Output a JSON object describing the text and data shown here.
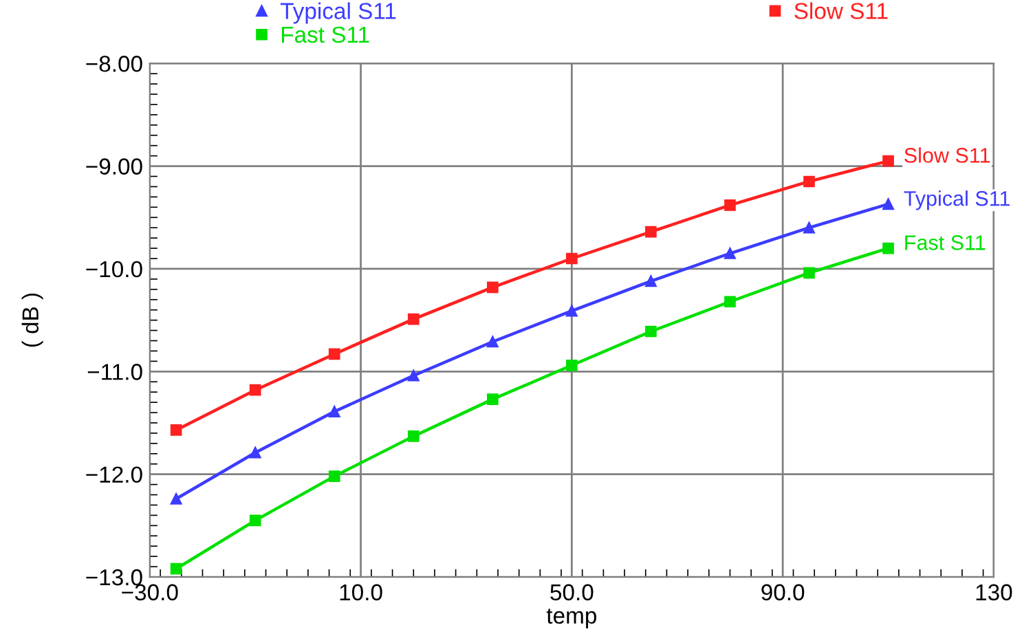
{
  "chart_data": {
    "type": "line",
    "xlabel": "temp",
    "ylabel": "( dB )",
    "x": [
      -25,
      -10,
      5,
      20,
      35,
      50,
      65,
      80,
      95,
      110
    ],
    "series": [
      {
        "name": "Typical S11",
        "color": "#3c3cff",
        "marker": "triangle",
        "values": [
          -12.24,
          -11.79,
          -11.39,
          -11.04,
          -10.71,
          -10.41,
          -10.12,
          -9.85,
          -9.6,
          -9.37
        ]
      },
      {
        "name": "Fast S11",
        "color": "#00e000",
        "marker": "square",
        "values": [
          -12.92,
          -12.45,
          -12.02,
          -11.63,
          -11.27,
          -10.94,
          -10.61,
          -10.32,
          -10.04,
          -9.8
        ]
      },
      {
        "name": "Slow S11",
        "color": "#ff2020",
        "marker": "square",
        "values": [
          -11.57,
          -11.18,
          -10.83,
          -10.49,
          -10.18,
          -9.9,
          -9.64,
          -9.38,
          -9.15,
          -8.95
        ]
      }
    ],
    "xlim": [
      -30,
      130
    ],
    "xticks": [
      {
        "value": -30,
        "label": "−30.0"
      },
      {
        "value": 10,
        "label": "10.0"
      },
      {
        "value": 50,
        "label": "50.0"
      },
      {
        "value": 90,
        "label": "90.0"
      },
      130
    ],
    "ylim": [
      -13,
      -8
    ],
    "yticks": [
      {
        "value": -13,
        "label": "−13.0"
      },
      {
        "value": -12,
        "label": "−12.0"
      },
      {
        "value": -11,
        "label": "−11.0"
      },
      {
        "value": -10,
        "label": "−10.0"
      },
      {
        "value": -9,
        "label": "−9.00"
      },
      {
        "value": -8,
        "label": "−8.00"
      }
    ],
    "grid": true,
    "legend": "top",
    "line_style": "solid"
  }
}
